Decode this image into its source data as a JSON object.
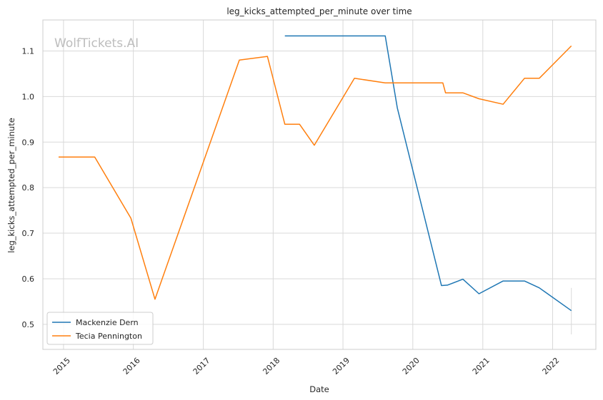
{
  "chart_data": {
    "type": "line",
    "title": "leg_kicks_attempted_per_minute over time",
    "xlabel": "Date",
    "ylabel": "leg_kicks_attempted_per_minute",
    "watermark": "WolfTickets.AI",
    "x_ticks": [
      "2015",
      "2016",
      "2017",
      "2018",
      "2019",
      "2020",
      "2021",
      "2022"
    ],
    "y_ticks": [
      "0.5",
      "0.6",
      "0.7",
      "0.8",
      "0.9",
      "1.0",
      "1.1"
    ],
    "xlim": [
      "2014-09-15",
      "2022-08-15"
    ],
    "ylim": [
      0.445,
      1.168
    ],
    "grid": true,
    "legend_position": "lower-left",
    "series": [
      {
        "name": "Mackenzie Dern",
        "color": "#1f77b4",
        "points": [
          [
            "2018-03-03",
            1.133
          ],
          [
            "2019-08-10",
            1.133
          ],
          [
            "2019-10-12",
            0.975
          ],
          [
            "2020-05-30",
            0.585
          ],
          [
            "2020-06-30",
            0.586
          ],
          [
            "2020-09-19",
            0.599
          ],
          [
            "2020-12-12",
            0.567
          ],
          [
            "2021-04-17",
            0.595
          ],
          [
            "2021-08-07",
            0.595
          ],
          [
            "2021-10-23",
            0.58
          ],
          [
            "2022-04-09",
            0.53
          ]
        ]
      },
      {
        "name": "Tecia Pennington",
        "color": "#ff7f0e",
        "points": [
          [
            "2014-12-06",
            0.867
          ],
          [
            "2015-06-13",
            0.867
          ],
          [
            "2015-12-19",
            0.733
          ],
          [
            "2016-04-23",
            0.555
          ],
          [
            "2017-07-08",
            1.08
          ],
          [
            "2017-12-02",
            1.088
          ],
          [
            "2018-03-03",
            0.939
          ],
          [
            "2018-05-19",
            0.939
          ],
          [
            "2018-08-04",
            0.893
          ],
          [
            "2019-03-02",
            1.04
          ],
          [
            "2019-08-10",
            1.03
          ],
          [
            "2020-06-06",
            1.03
          ],
          [
            "2020-06-20",
            1.008
          ],
          [
            "2020-09-19",
            1.008
          ],
          [
            "2020-12-12",
            0.995
          ],
          [
            "2021-04-17",
            0.983
          ],
          [
            "2021-08-07",
            1.04
          ],
          [
            "2021-10-23",
            1.04
          ],
          [
            "2022-04-09",
            1.111
          ]
        ]
      }
    ],
    "error_bar": {
      "x": "2022-04-09",
      "low": 0.478,
      "high": 0.58,
      "color": "#d9d9d9"
    }
  }
}
